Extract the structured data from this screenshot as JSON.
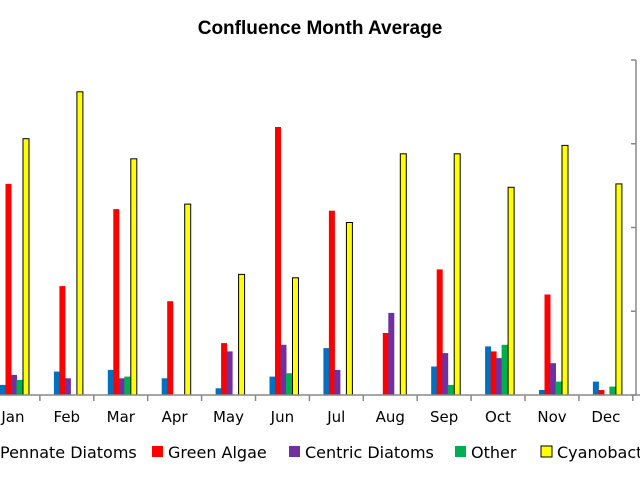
{
  "chart_data": {
    "type": "bar",
    "title": "Confluence Month Average",
    "xlabel": "",
    "ylabel": "",
    "categories": [
      "Jan",
      "Feb",
      "Mar",
      "Apr",
      "May",
      "Jun",
      "Jul",
      "Aug",
      "Sep",
      "Oct",
      "Nov",
      "Dec"
    ],
    "ylim": [
      0,
      100
    ],
    "grid": false,
    "legend_position": "bottom",
    "series": [
      {
        "name": "Pennate Diatoms",
        "color": "#0070C0",
        "values": [
          3,
          7,
          7.5,
          5,
          2,
          5.5,
          14,
          0,
          8.5,
          14.5,
          1.5,
          4
        ]
      },
      {
        "name": "Green Algae",
        "color": "#FF0000",
        "values": [
          63,
          32.5,
          55.5,
          28,
          15.5,
          80,
          55,
          18.5,
          37.5,
          13,
          30,
          1.5
        ]
      },
      {
        "name": "Centric Diatoms",
        "color": "#7030A0",
        "values": [
          6,
          5,
          5,
          0,
          13,
          15,
          7.5,
          24.5,
          12.5,
          11,
          9.5,
          0
        ]
      },
      {
        "name": "Other",
        "color": "#00B050",
        "values": [
          4.5,
          0,
          5.5,
          0,
          0,
          6.5,
          0,
          0,
          3,
          15,
          4,
          2.5
        ]
      },
      {
        "name": "Cyanobacteria",
        "color": "#FFFF00",
        "values": [
          76.5,
          90.5,
          70.5,
          57,
          36,
          35,
          51.5,
          72,
          72,
          62,
          74.5,
          63
        ]
      }
    ]
  }
}
